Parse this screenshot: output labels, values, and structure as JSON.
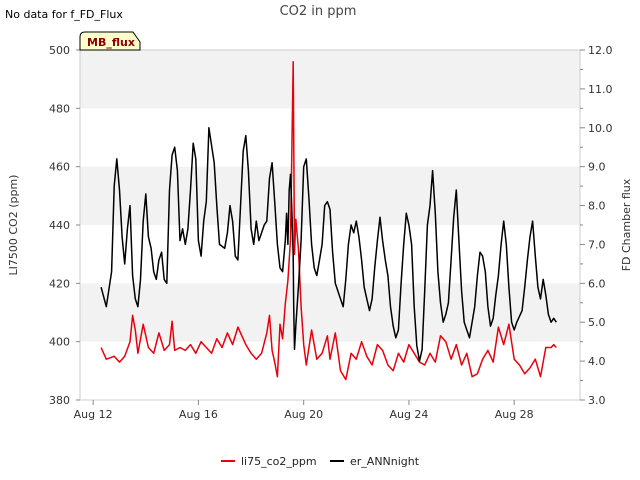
{
  "note": "No data for f_FD_Flux",
  "badge": "MB_flux",
  "chart_data": {
    "type": "line",
    "title": "CO2 in ppm",
    "xlabel": "",
    "ylabel": "LI7500 CO2 (ppm)",
    "y2label": "FD Chamber flux",
    "xlim": [
      11.5,
      30.5
    ],
    "ylim": [
      380,
      500
    ],
    "y2lim": [
      3.0,
      12.0
    ],
    "x_ticks": [
      12,
      16,
      20,
      24,
      28
    ],
    "x_tick_labels": [
      "Aug 12",
      "Aug 16",
      "Aug 20",
      "Aug 24",
      "Aug 28"
    ],
    "y_ticks": [
      380,
      400,
      420,
      440,
      460,
      480,
      500
    ],
    "y_tick_labels": [
      "380",
      "400",
      "420",
      "440",
      "460",
      "480",
      "500"
    ],
    "y2_ticks": [
      3,
      4,
      5,
      6,
      7,
      8,
      9,
      10,
      11,
      12
    ],
    "y2_tick_labels": [
      "3.0",
      "4.0",
      "5.0",
      "6.0",
      "7.0",
      "8.0",
      "9.0",
      "10.0",
      "11.0",
      "12.0"
    ],
    "grid": false,
    "background_bands": true,
    "legend": "bottom-center",
    "series": [
      {
        "name": "li75_co2_ppm",
        "axis": "left",
        "color": "#e8000b",
        "points": [
          [
            12.3,
            398
          ],
          [
            12.5,
            394
          ],
          [
            12.8,
            395
          ],
          [
            13.0,
            393
          ],
          [
            13.2,
            395
          ],
          [
            13.4,
            400
          ],
          [
            13.5,
            409
          ],
          [
            13.6,
            404
          ],
          [
            13.7,
            396
          ],
          [
            13.9,
            406
          ],
          [
            14.1,
            398
          ],
          [
            14.3,
            396
          ],
          [
            14.5,
            403
          ],
          [
            14.7,
            397
          ],
          [
            14.9,
            399
          ],
          [
            15.0,
            407
          ],
          [
            15.1,
            397
          ],
          [
            15.3,
            398
          ],
          [
            15.5,
            397
          ],
          [
            15.7,
            399
          ],
          [
            15.9,
            396
          ],
          [
            16.1,
            400
          ],
          [
            16.3,
            398
          ],
          [
            16.5,
            396
          ],
          [
            16.7,
            401
          ],
          [
            16.9,
            398
          ],
          [
            17.1,
            403
          ],
          [
            17.3,
            399
          ],
          [
            17.5,
            405
          ],
          [
            17.7,
            401
          ],
          [
            17.8,
            399
          ],
          [
            18.0,
            396
          ],
          [
            18.2,
            394
          ],
          [
            18.4,
            396
          ],
          [
            18.6,
            403
          ],
          [
            18.7,
            409
          ],
          [
            18.8,
            397
          ],
          [
            18.9,
            393
          ],
          [
            19.0,
            388
          ],
          [
            19.1,
            406
          ],
          [
            19.2,
            401
          ],
          [
            19.3,
            413
          ],
          [
            19.4,
            421
          ],
          [
            19.5,
            435
          ],
          [
            19.6,
            496
          ],
          [
            19.65,
            430
          ],
          [
            19.7,
            442
          ],
          [
            19.8,
            432
          ],
          [
            19.9,
            412
          ],
          [
            20.0,
            399
          ],
          [
            20.1,
            392
          ],
          [
            20.3,
            404
          ],
          [
            20.5,
            394
          ],
          [
            20.7,
            396
          ],
          [
            20.9,
            402
          ],
          [
            21.0,
            394
          ],
          [
            21.2,
            403
          ],
          [
            21.4,
            390
          ],
          [
            21.6,
            387
          ],
          [
            21.8,
            396
          ],
          [
            22.0,
            394
          ],
          [
            22.2,
            400
          ],
          [
            22.4,
            395
          ],
          [
            22.6,
            392
          ],
          [
            22.8,
            399
          ],
          [
            23.0,
            397
          ],
          [
            23.2,
            392
          ],
          [
            23.4,
            390
          ],
          [
            23.6,
            396
          ],
          [
            23.8,
            393
          ],
          [
            24.0,
            399
          ],
          [
            24.2,
            396
          ],
          [
            24.4,
            393
          ],
          [
            24.6,
            392
          ],
          [
            24.8,
            396
          ],
          [
            25.0,
            393
          ],
          [
            25.2,
            402
          ],
          [
            25.4,
            400
          ],
          [
            25.6,
            394
          ],
          [
            25.8,
            399
          ],
          [
            26.0,
            392
          ],
          [
            26.2,
            396
          ],
          [
            26.4,
            388
          ],
          [
            26.6,
            389
          ],
          [
            26.8,
            394
          ],
          [
            27.0,
            397
          ],
          [
            27.2,
            393
          ],
          [
            27.4,
            405
          ],
          [
            27.6,
            399
          ],
          [
            27.8,
            406
          ],
          [
            28.0,
            394
          ],
          [
            28.2,
            392
          ],
          [
            28.4,
            389
          ],
          [
            28.6,
            391
          ],
          [
            28.8,
            394
          ],
          [
            29.0,
            388
          ],
          [
            29.2,
            398
          ],
          [
            29.4,
            398
          ],
          [
            29.5,
            399
          ],
          [
            29.6,
            398
          ]
        ]
      },
      {
        "name": "er_ANNnight",
        "axis": "right",
        "color": "#000000",
        "points": [
          [
            12.3,
            5.9
          ],
          [
            12.5,
            5.4
          ],
          [
            12.7,
            6.3
          ],
          [
            12.8,
            8.5
          ],
          [
            12.9,
            9.2
          ],
          [
            13.0,
            8.4
          ],
          [
            13.1,
            7.2
          ],
          [
            13.2,
            6.5
          ],
          [
            13.3,
            7.4
          ],
          [
            13.4,
            8.0
          ],
          [
            13.5,
            6.2
          ],
          [
            13.6,
            5.6
          ],
          [
            13.7,
            5.4
          ],
          [
            13.8,
            6.1
          ],
          [
            13.9,
            7.6
          ],
          [
            14.0,
            8.3
          ],
          [
            14.1,
            7.2
          ],
          [
            14.2,
            6.9
          ],
          [
            14.3,
            6.3
          ],
          [
            14.4,
            6.1
          ],
          [
            14.5,
            6.6
          ],
          [
            14.6,
            6.8
          ],
          [
            14.7,
            6.1
          ],
          [
            14.8,
            6.0
          ],
          [
            14.9,
            8.4
          ],
          [
            15.0,
            9.3
          ],
          [
            15.1,
            9.5
          ],
          [
            15.2,
            8.9
          ],
          [
            15.3,
            7.1
          ],
          [
            15.4,
            7.4
          ],
          [
            15.5,
            7.0
          ],
          [
            15.6,
            7.4
          ],
          [
            15.7,
            8.4
          ],
          [
            15.8,
            9.6
          ],
          [
            15.9,
            9.2
          ],
          [
            16.0,
            7.1
          ],
          [
            16.1,
            6.7
          ],
          [
            16.2,
            7.6
          ],
          [
            16.3,
            8.1
          ],
          [
            16.4,
            10.0
          ],
          [
            16.6,
            9.1
          ],
          [
            16.7,
            8.0
          ],
          [
            16.8,
            7.0
          ],
          [
            17.0,
            6.9
          ],
          [
            17.1,
            7.3
          ],
          [
            17.2,
            8.0
          ],
          [
            17.3,
            7.6
          ],
          [
            17.4,
            6.7
          ],
          [
            17.5,
            6.6
          ],
          [
            17.7,
            9.4
          ],
          [
            17.8,
            9.8
          ],
          [
            17.9,
            8.9
          ],
          [
            18.0,
            7.4
          ],
          [
            18.1,
            7.0
          ],
          [
            18.2,
            7.6
          ],
          [
            18.3,
            7.1
          ],
          [
            18.4,
            7.3
          ],
          [
            18.5,
            7.5
          ],
          [
            18.6,
            7.6
          ],
          [
            18.7,
            8.7
          ],
          [
            18.8,
            9.1
          ],
          [
            18.9,
            8.1
          ],
          [
            19.0,
            7.0
          ],
          [
            19.1,
            6.4
          ],
          [
            19.2,
            6.3
          ],
          [
            19.3,
            7.1
          ],
          [
            19.35,
            7.8
          ],
          [
            19.4,
            7.0
          ],
          [
            19.45,
            8.4
          ],
          [
            19.5,
            8.8
          ],
          [
            19.55,
            7.9
          ],
          [
            19.6,
            6.7
          ],
          [
            19.62,
            5.4
          ],
          [
            19.65,
            4.3
          ],
          [
            19.7,
            4.9
          ],
          [
            19.8,
            5.9
          ],
          [
            19.9,
            7.1
          ],
          [
            20.0,
            9.0
          ],
          [
            20.1,
            9.2
          ],
          [
            20.2,
            8.2
          ],
          [
            20.3,
            7.0
          ],
          [
            20.4,
            6.4
          ],
          [
            20.5,
            6.2
          ],
          [
            20.6,
            6.6
          ],
          [
            20.7,
            7.0
          ],
          [
            20.8,
            8.0
          ],
          [
            20.9,
            8.1
          ],
          [
            21.0,
            7.9
          ],
          [
            21.1,
            6.8
          ],
          [
            21.2,
            6.0
          ],
          [
            21.3,
            5.8
          ],
          [
            21.4,
            5.6
          ],
          [
            21.5,
            5.4
          ],
          [
            21.6,
            6.1
          ],
          [
            21.7,
            7.0
          ],
          [
            21.8,
            7.5
          ],
          [
            21.9,
            7.3
          ],
          [
            22.0,
            7.6
          ],
          [
            22.1,
            7.2
          ],
          [
            22.2,
            6.6
          ],
          [
            22.3,
            5.9
          ],
          [
            22.4,
            5.6
          ],
          [
            22.5,
            5.3
          ],
          [
            22.6,
            5.6
          ],
          [
            22.7,
            6.4
          ],
          [
            22.8,
            7.1
          ],
          [
            22.9,
            7.7
          ],
          [
            23.0,
            7.1
          ],
          [
            23.1,
            6.6
          ],
          [
            23.2,
            6.2
          ],
          [
            23.3,
            5.4
          ],
          [
            23.4,
            4.9
          ],
          [
            23.5,
            4.6
          ],
          [
            23.6,
            4.8
          ],
          [
            23.7,
            6.0
          ],
          [
            23.8,
            7.0
          ],
          [
            23.9,
            7.8
          ],
          [
            24.0,
            7.5
          ],
          [
            24.1,
            7.0
          ],
          [
            24.2,
            5.4
          ],
          [
            24.3,
            4.4
          ],
          [
            24.4,
            4.0
          ],
          [
            24.5,
            4.3
          ],
          [
            24.6,
            5.8
          ],
          [
            24.7,
            7.5
          ],
          [
            24.8,
            8.0
          ],
          [
            24.9,
            8.9
          ],
          [
            25.0,
            7.8
          ],
          [
            25.1,
            6.3
          ],
          [
            25.2,
            5.5
          ],
          [
            25.3,
            5.0
          ],
          [
            25.4,
            5.2
          ],
          [
            25.5,
            5.5
          ],
          [
            25.6,
            6.6
          ],
          [
            25.7,
            7.7
          ],
          [
            25.8,
            8.4
          ],
          [
            25.9,
            7.1
          ],
          [
            26.0,
            5.8
          ],
          [
            26.1,
            5.0
          ],
          [
            26.2,
            4.8
          ],
          [
            26.3,
            4.6
          ],
          [
            26.5,
            5.4
          ],
          [
            26.6,
            6.2
          ],
          [
            26.7,
            6.8
          ],
          [
            26.8,
            6.7
          ],
          [
            26.9,
            6.3
          ],
          [
            27.0,
            5.4
          ],
          [
            27.1,
            4.9
          ],
          [
            27.2,
            5.1
          ],
          [
            27.3,
            5.7
          ],
          [
            27.4,
            6.2
          ],
          [
            27.5,
            7.0
          ],
          [
            27.6,
            7.6
          ],
          [
            27.7,
            7.0
          ],
          [
            27.8,
            5.9
          ],
          [
            27.9,
            5.0
          ],
          [
            28.0,
            4.8
          ],
          [
            28.1,
            5.0
          ],
          [
            28.3,
            5.3
          ],
          [
            28.4,
            5.9
          ],
          [
            28.5,
            6.6
          ],
          [
            28.6,
            7.2
          ],
          [
            28.7,
            7.6
          ],
          [
            28.8,
            6.7
          ],
          [
            28.9,
            5.9
          ],
          [
            29.0,
            5.6
          ],
          [
            29.1,
            6.1
          ],
          [
            29.2,
            5.7
          ],
          [
            29.3,
            5.2
          ],
          [
            29.4,
            5.0
          ],
          [
            29.5,
            5.1
          ],
          [
            29.6,
            5.0
          ]
        ]
      }
    ]
  }
}
